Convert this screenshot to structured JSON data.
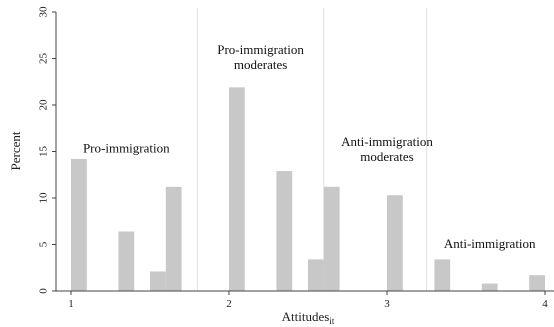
{
  "chart_data": {
    "type": "bar",
    "ylabel": "Percent",
    "xlabel": "Attitudes",
    "xlabel_subscript": "it",
    "xlim": [
      0.9,
      4.05
    ],
    "ylim": [
      0,
      30
    ],
    "x_ticks": [
      1,
      2,
      3,
      4
    ],
    "y_ticks": [
      0,
      5,
      10,
      15,
      20,
      25,
      30
    ],
    "bar_width": 0.1,
    "grid": false,
    "dividers": [
      1.8,
      2.6,
      3.25
    ],
    "bars": [
      {
        "x": 1.05,
        "y": 14.2
      },
      {
        "x": 1.35,
        "y": 6.4
      },
      {
        "x": 1.55,
        "y": 2.1
      },
      {
        "x": 1.65,
        "y": 11.2
      },
      {
        "x": 2.05,
        "y": 21.9
      },
      {
        "x": 2.35,
        "y": 12.9
      },
      {
        "x": 2.55,
        "y": 3.4
      },
      {
        "x": 2.65,
        "y": 11.2
      },
      {
        "x": 3.05,
        "y": 10.3
      },
      {
        "x": 3.35,
        "y": 3.4
      },
      {
        "x": 3.65,
        "y": 0.8
      },
      {
        "x": 3.95,
        "y": 1.7
      }
    ],
    "annotations": [
      {
        "lines": [
          "Pro-immigration"
        ],
        "x": 1.35,
        "y": 14.9
      },
      {
        "lines": [
          "Pro-immigration",
          "moderates"
        ],
        "x": 2.2,
        "y": 25.5
      },
      {
        "lines": [
          "Anti-immigration",
          "moderates"
        ],
        "x": 3.0,
        "y": 15.6
      },
      {
        "lines": [
          "Anti-immigration"
        ],
        "x": 3.65,
        "y": 4.6
      }
    ]
  }
}
